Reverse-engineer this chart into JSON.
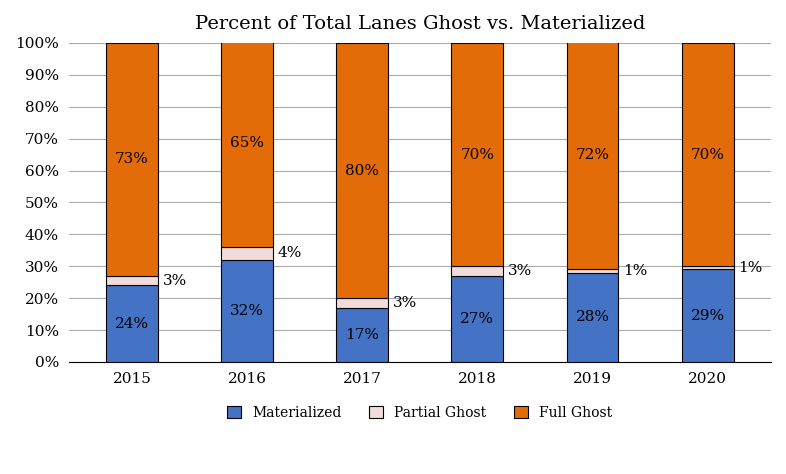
{
  "title": "Percent of Total Lanes Ghost vs. Materialized",
  "years": [
    "2015",
    "2016",
    "2017",
    "2018",
    "2019",
    "2020"
  ],
  "materialized": [
    24,
    32,
    17,
    27,
    28,
    29
  ],
  "partial_ghost": [
    3,
    4,
    3,
    3,
    1,
    1
  ],
  "full_ghost": [
    73,
    65,
    80,
    70,
    72,
    70
  ],
  "color_materialized": "#4472C4",
  "color_partial_ghost": "#F2DCDB",
  "color_full_ghost": "#E36C09",
  "bar_edge_color": "#000000",
  "bar_edge_width": 0.8,
  "bar_width": 0.45,
  "ylim": [
    0,
    100
  ],
  "yticks": [
    0,
    10,
    20,
    30,
    40,
    50,
    60,
    70,
    80,
    90,
    100
  ],
  "ytick_labels": [
    "0%",
    "10%",
    "20%",
    "30%",
    "40%",
    "50%",
    "60%",
    "70%",
    "80%",
    "90%",
    "100%"
  ],
  "legend_labels": [
    "Materialized",
    "Partial Ghost",
    "Full Ghost"
  ],
  "background_color": "#FFFFFF",
  "grid_color": "#AAAAAA",
  "title_fontsize": 14,
  "label_fontsize": 11,
  "tick_fontsize": 11,
  "legend_fontsize": 10,
  "mat_text_color": "#000000",
  "fg_text_color": "#000000",
  "pg_text_color": "#000000"
}
